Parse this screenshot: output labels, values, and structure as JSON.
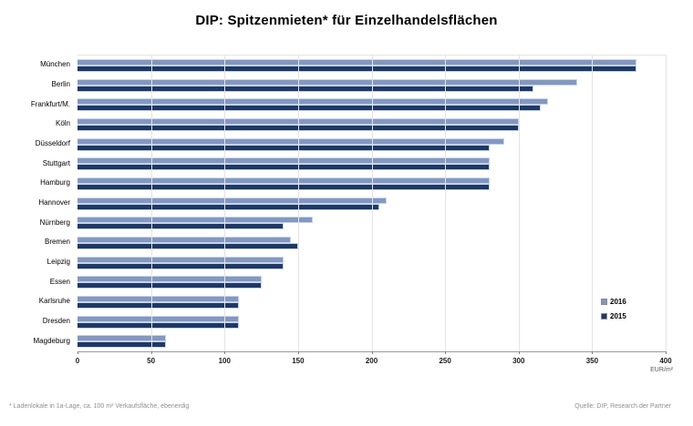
{
  "chart_data": {
    "type": "bar",
    "orientation": "horizontal",
    "title": "DIP: Spitzenmieten* für Einzelhandelsflächen",
    "categories": [
      "München",
      "Berlin",
      "Frankfurt/M.",
      "Köln",
      "Düsseldorf",
      "Stuttgart",
      "Hamburg",
      "Hannover",
      "Nürnberg",
      "Bremen",
      "Leipzig",
      "Essen",
      "Karlsruhe",
      "Dresden",
      "Magdeburg"
    ],
    "series": [
      {
        "name": "2016",
        "color": "#8497c1",
        "values": [
          380,
          340,
          320,
          300,
          290,
          280,
          280,
          210,
          160,
          145,
          140,
          125,
          110,
          110,
          60
        ]
      },
      {
        "name": "2015",
        "color": "#1f3864",
        "values": [
          380,
          310,
          315,
          300,
          280,
          280,
          280,
          205,
          140,
          150,
          140,
          125,
          110,
          110,
          60
        ]
      }
    ],
    "xlim": [
      0,
      400
    ],
    "xticks": [
      0,
      50,
      100,
      150,
      200,
      250,
      300,
      350,
      400
    ],
    "x_unit": "EUR/m²",
    "grid": "vertical",
    "legend_position": "right-inside",
    "footnote": "* Ladenlokale in 1a-Lage, ca. 100 m² Verkaufsfläche, ebenerdig",
    "source": "Quelle: DIP, Research der Partner",
    "colors": {
      "background": "#ffffff",
      "gridline": "#e4e4e4",
      "axis_line": "#9a9a9a",
      "bar_border": "#c3d4ea",
      "title_text": "#000000",
      "footnote_text": "#8f8f8f"
    }
  }
}
